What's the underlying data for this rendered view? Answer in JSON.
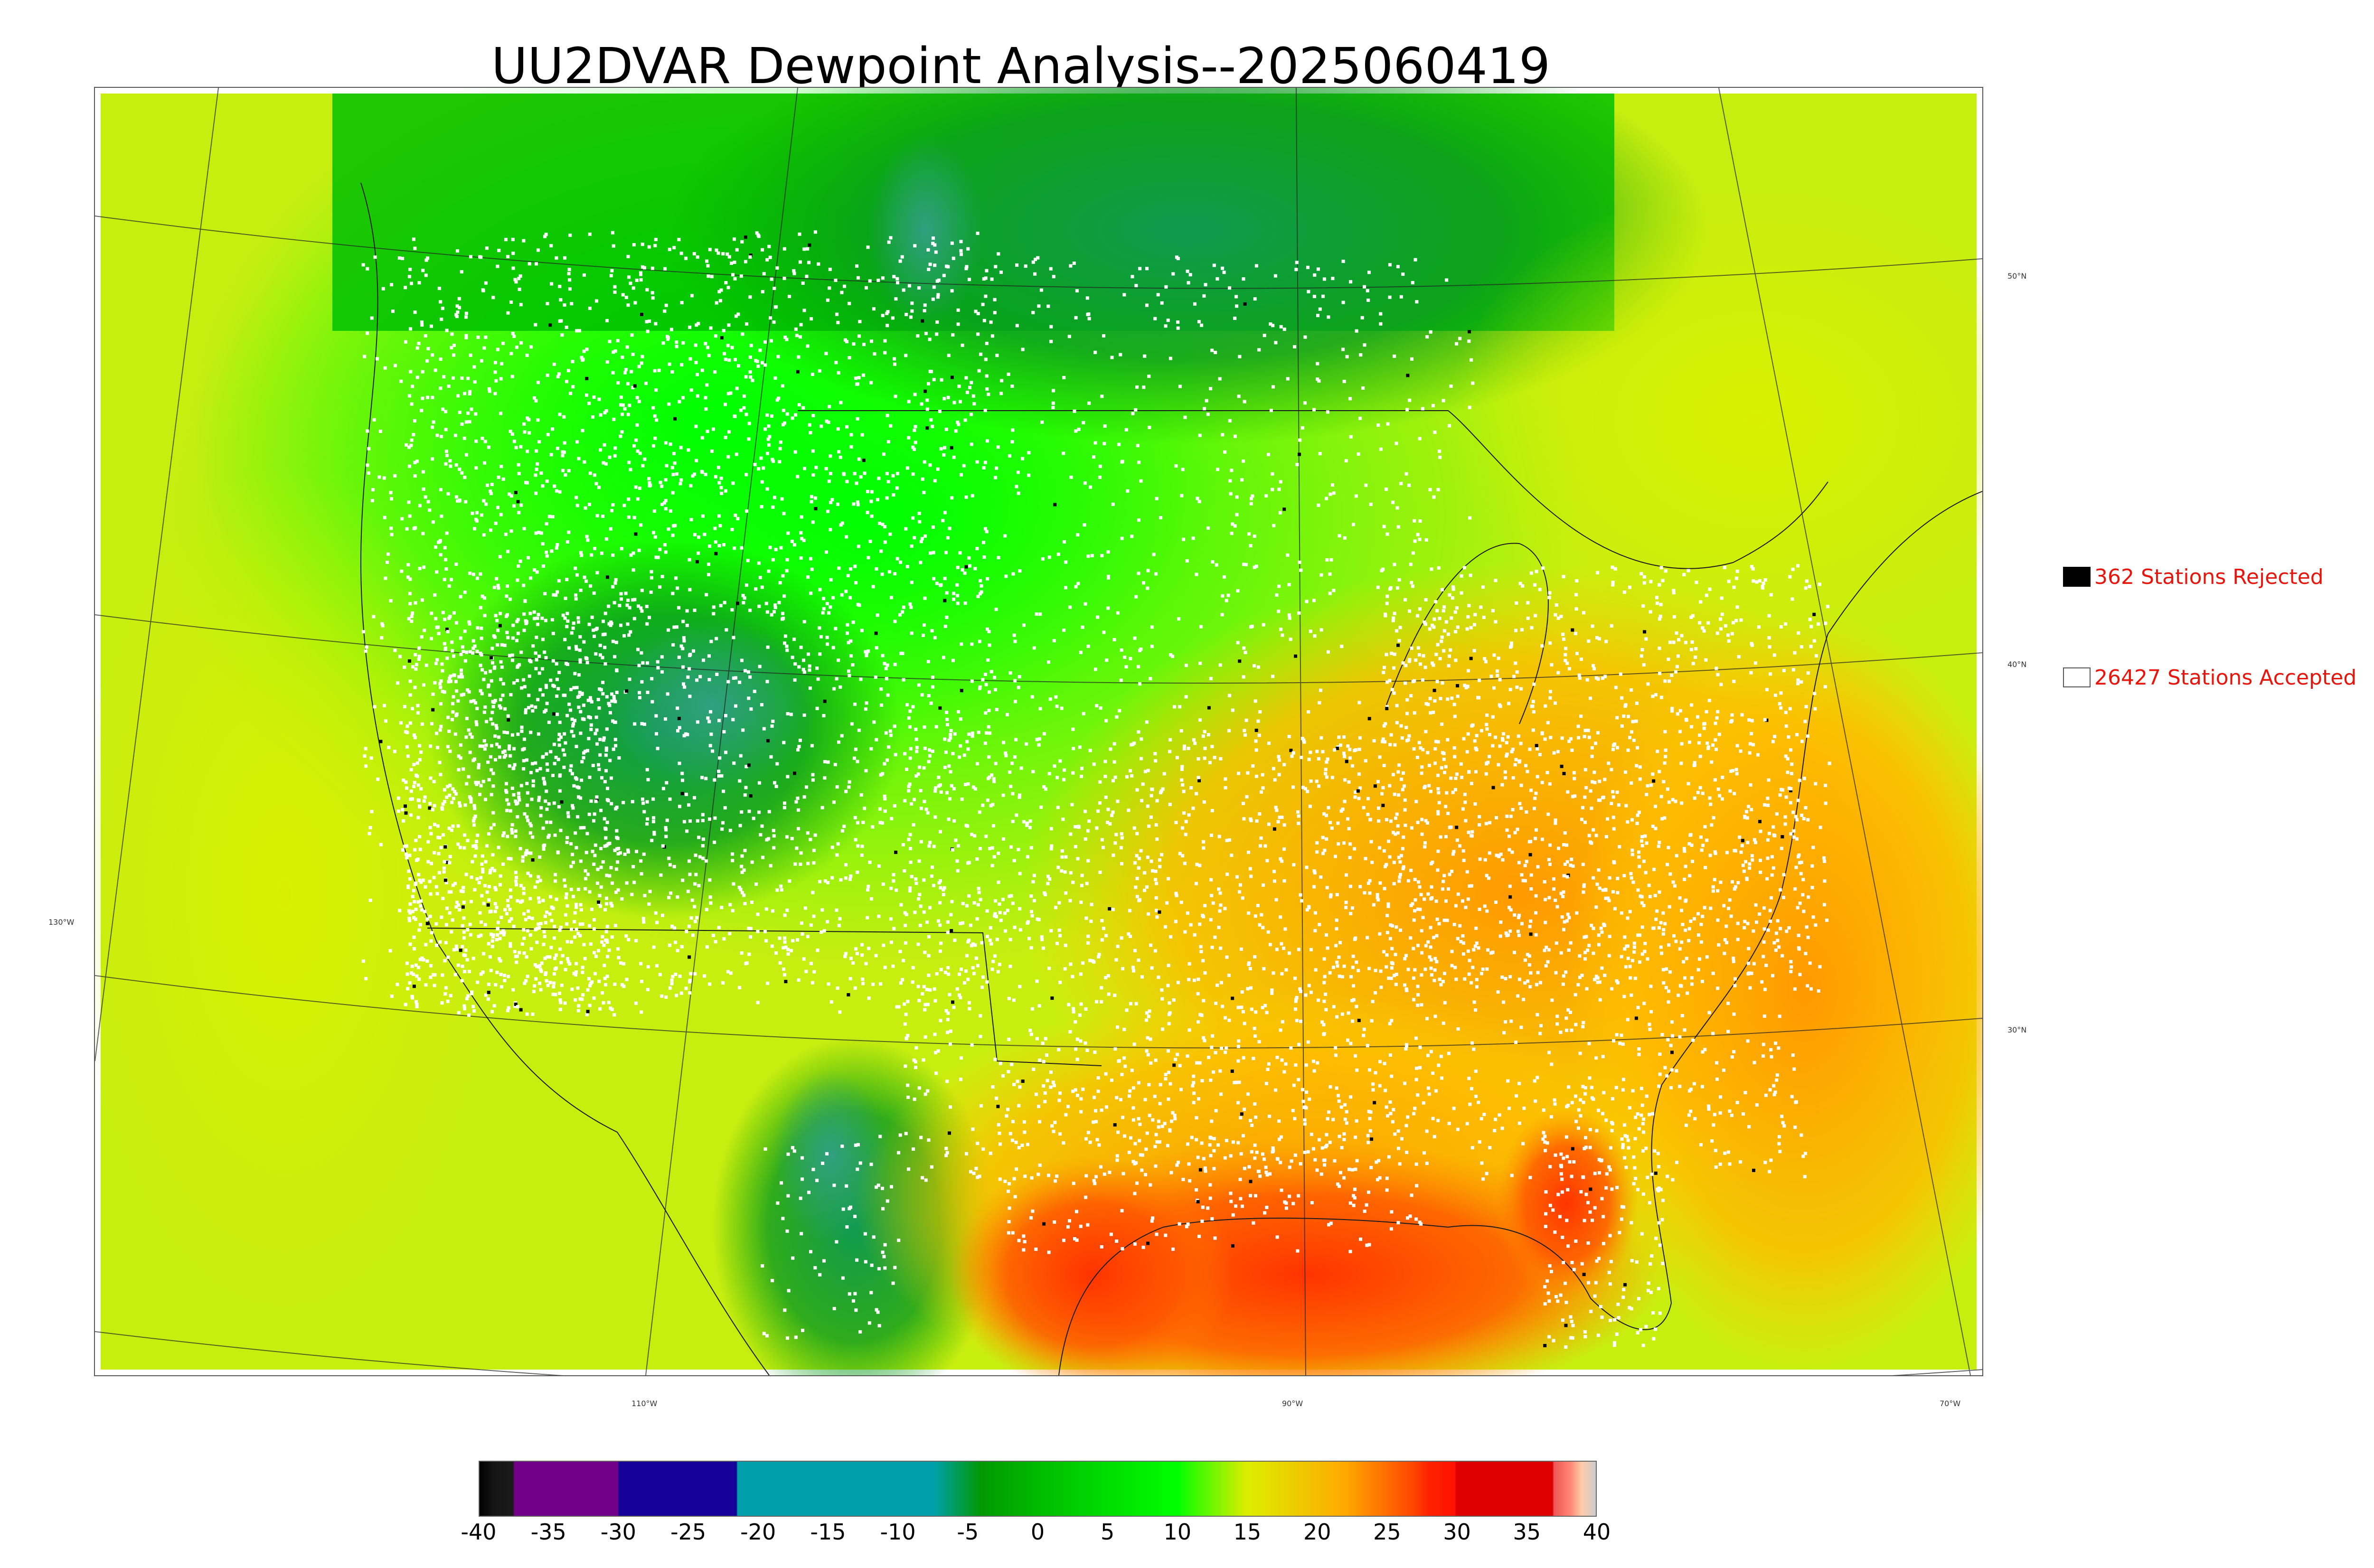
{
  "title": "UU2DVAR Dewpoint Analysis--2025060419",
  "map": {
    "lat_labels": [
      "50°N",
      "40°N",
      "30°N"
    ],
    "lon_labels": [
      "130°W",
      "110°W",
      "90°W",
      "70°W"
    ],
    "station_marker_colors": {
      "accepted": "#ffffff",
      "rejected": "#000000"
    }
  },
  "legend": {
    "rejected": {
      "label": "362 Stations Rejected",
      "swatch_color": "#000000"
    },
    "accepted": {
      "label": "26427 Stations Accepted",
      "swatch_color": "#ffffff"
    }
  },
  "colorbar": {
    "ticks": [
      "-40",
      "-35",
      "-30",
      "-25",
      "-20",
      "-15",
      "-10",
      "-5",
      "0",
      "5",
      "10",
      "15",
      "20",
      "25",
      "30",
      "35",
      "40"
    ],
    "range": [
      -40,
      40
    ],
    "stops": [
      {
        "v": -40,
        "c": "#000000"
      },
      {
        "v": -39,
        "c": "#151515"
      },
      {
        "v": -37.6,
        "c": "#1a1a1a"
      },
      {
        "v": -37.5,
        "c": "#720088"
      },
      {
        "v": -30.1,
        "c": "#720088"
      },
      {
        "v": -30,
        "c": "#15009a"
      },
      {
        "v": -21.6,
        "c": "#15009a"
      },
      {
        "v": -21.5,
        "c": "#00a0aa"
      },
      {
        "v": -7.5,
        "c": "#00a0aa"
      },
      {
        "v": -4,
        "c": "#009900"
      },
      {
        "v": 0,
        "c": "#00bb00"
      },
      {
        "v": 10,
        "c": "#00ff00"
      },
      {
        "v": 15,
        "c": "#ddee00"
      },
      {
        "v": 22,
        "c": "#ffaa00"
      },
      {
        "v": 27,
        "c": "#ff4400"
      },
      {
        "v": 28,
        "c": "#ff2200"
      },
      {
        "v": 29.9,
        "c": "#ff1100"
      },
      {
        "v": 30,
        "c": "#dd0000"
      },
      {
        "v": 36.9,
        "c": "#dd0000"
      },
      {
        "v": 37,
        "c": "#ee5555"
      },
      {
        "v": 38.2,
        "c": "#ff8877"
      },
      {
        "v": 39,
        "c": "#ffccaa"
      },
      {
        "v": 40,
        "c": "#cccccc"
      }
    ]
  }
}
